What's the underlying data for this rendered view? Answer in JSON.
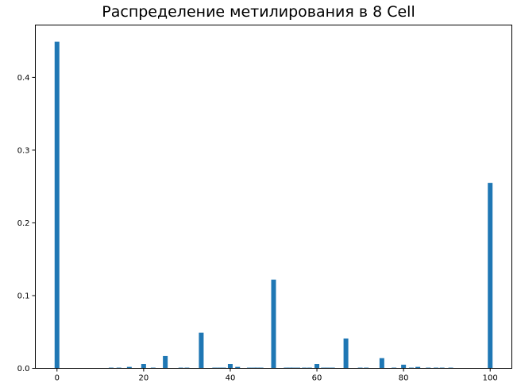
{
  "chart_data": {
    "type": "bar",
    "title": "Распределение метилирования в 8 Cell",
    "xlabel": "",
    "ylabel": "",
    "xlim": [
      -5,
      105
    ],
    "ylim": [
      0,
      0.472
    ],
    "grid": false,
    "bar_color": "#1f77b4",
    "x_ticks": [
      0,
      20,
      40,
      60,
      80,
      100
    ],
    "y_ticks": [
      0.0,
      0.1,
      0.2,
      0.3,
      0.4
    ],
    "y_tick_labels": [
      "0.0",
      "0.1",
      "0.2",
      "0.3",
      "0.4"
    ],
    "bar_width": 1.1,
    "x": [
      0,
      12.5,
      14.3,
      16.7,
      20,
      22.2,
      25,
      28.6,
      30,
      33.3,
      36.4,
      37.5,
      38.5,
      40,
      41.7,
      44.4,
      45.5,
      46.2,
      47.1,
      50,
      52.9,
      53.8,
      54.5,
      55.6,
      57.1,
      58.3,
      60,
      61.5,
      62.5,
      63.6,
      66.7,
      70,
      71.4,
      75,
      77.8,
      80,
      81.8,
      83.3,
      85.7,
      87.5,
      88.9,
      90.9,
      100
    ],
    "values": [
      0.449,
      0.001,
      0.001,
      0.002,
      0.006,
      0.001,
      0.017,
      0.001,
      0.001,
      0.049,
      0.001,
      0.001,
      0.001,
      0.006,
      0.002,
      0.001,
      0.001,
      0.001,
      0.001,
      0.122,
      0.001,
      0.001,
      0.001,
      0.001,
      0.001,
      0.001,
      0.006,
      0.001,
      0.001,
      0.001,
      0.041,
      0.001,
      0.001,
      0.014,
      0.001,
      0.005,
      0.001,
      0.002,
      0.001,
      0.001,
      0.001,
      0.001,
      0.255
    ]
  }
}
